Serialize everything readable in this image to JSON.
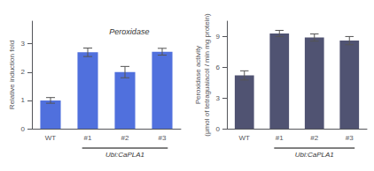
{
  "chart_data": [
    {
      "type": "bar",
      "categories": [
        "WT",
        "#1",
        "#2",
        "#3"
      ],
      "values": [
        1.0,
        2.7,
        2.0,
        2.72
      ],
      "errors": [
        0.1,
        0.15,
        0.2,
        0.12
      ],
      "ylabel": "Relative induction fold",
      "xlabel": "Ubi:CaPLA1",
      "annotation": "Peroxidase",
      "ylim": [
        0,
        3.8
      ],
      "yticks": [
        0,
        1,
        2,
        3
      ],
      "grid": false
    },
    {
      "type": "bar",
      "categories": [
        "WT",
        "#1",
        "#2",
        "#3"
      ],
      "values": [
        5.2,
        9.3,
        8.9,
        8.6
      ],
      "errors": [
        0.45,
        0.3,
        0.35,
        0.4
      ],
      "ylabel": "Peroxidase activity\n(μmol of tetraguaiacol / min mg protein)",
      "xlabel": "Ubi:CaPLA1",
      "ylim": [
        0,
        10.5
      ],
      "yticks": [
        0,
        3,
        6,
        9
      ],
      "grid": false
    }
  ]
}
